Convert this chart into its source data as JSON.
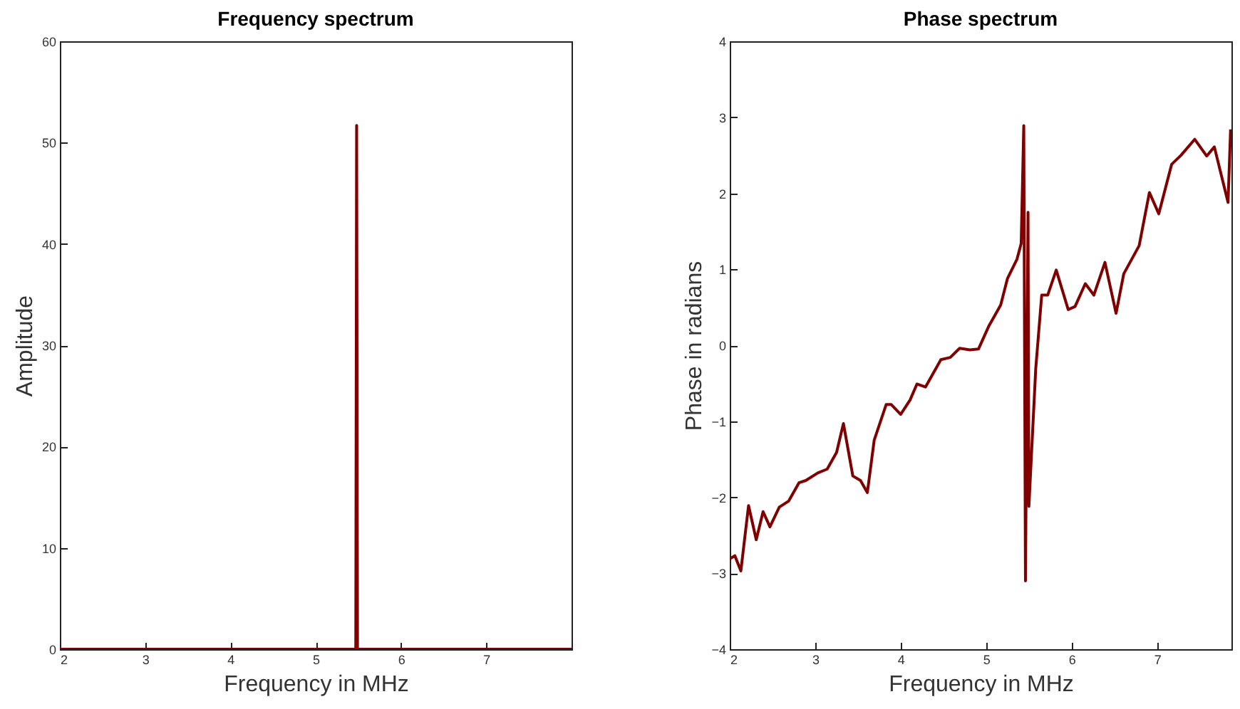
{
  "chart_data": [
    {
      "type": "line",
      "title": "Frequency spectrum",
      "xlabel": "Frequency in MHz",
      "ylabel": "Amplitude",
      "x": [
        2,
        5.47,
        5.48,
        5.49,
        8
      ],
      "xlim": [
        2,
        8
      ],
      "xticks": [
        2,
        3,
        4,
        5,
        6,
        7
      ],
      "ylim": [
        0,
        60
      ],
      "yticks": [
        0,
        10,
        20,
        30,
        40,
        50,
        60
      ],
      "series": [
        {
          "color": "#800000",
          "values": [
            0,
            0,
            51.7,
            0,
            0
          ]
        }
      ]
    },
    {
      "type": "line",
      "title": "Phase spectrum",
      "xlabel": "Frequency in MHz",
      "ylabel": "Phase in radians",
      "x": [
        2.0,
        2.06,
        2.13,
        2.22,
        2.31,
        2.39,
        2.47,
        2.58,
        2.69,
        2.81,
        2.89,
        3.03,
        3.14,
        3.25,
        3.33,
        3.44,
        3.53,
        3.61,
        3.69,
        3.83,
        3.89,
        4.0,
        4.11,
        4.19,
        4.29,
        4.47,
        4.58,
        4.69,
        4.81,
        4.91,
        5.03,
        5.06,
        5.17,
        5.25,
        5.36,
        5.41,
        5.44,
        5.46,
        5.49,
        5.5,
        5.58,
        5.65,
        5.72,
        5.82,
        5.96,
        6.04,
        6.16,
        6.26,
        6.39,
        6.52,
        6.61,
        6.79,
        6.91,
        7.02,
        7.17,
        7.28,
        7.44,
        7.58,
        7.67,
        7.83,
        7.86
      ],
      "xlim": [
        2,
        7.87
      ],
      "xticks": [
        2,
        3,
        4,
        5,
        6,
        7
      ],
      "ylim": [
        -4,
        4
      ],
      "yticks": [
        -4,
        -3,
        -2,
        -1,
        0,
        1,
        2,
        3,
        4
      ],
      "series": [
        {
          "color": "#800000",
          "values": [
            -2.81,
            -2.77,
            -2.97,
            -2.11,
            -2.56,
            -2.19,
            -2.39,
            -2.13,
            -2.05,
            -1.81,
            -1.78,
            -1.68,
            -1.63,
            -1.41,
            -1.03,
            -1.72,
            -1.78,
            -1.94,
            -1.25,
            -0.78,
            -0.78,
            -0.91,
            -0.72,
            -0.51,
            -0.55,
            -0.19,
            -0.16,
            -0.04,
            -0.06,
            -0.05,
            0.25,
            0.31,
            0.53,
            0.88,
            1.13,
            1.34,
            2.89,
            -3.1,
            1.75,
            -2.12,
            -0.31,
            0.66,
            0.66,
            0.99,
            0.47,
            0.51,
            0.81,
            0.66,
            1.09,
            0.42,
            0.94,
            1.31,
            2.01,
            1.73,
            2.38,
            2.5,
            2.71,
            2.49,
            2.61,
            1.88,
            2.84
          ]
        }
      ]
    }
  ]
}
